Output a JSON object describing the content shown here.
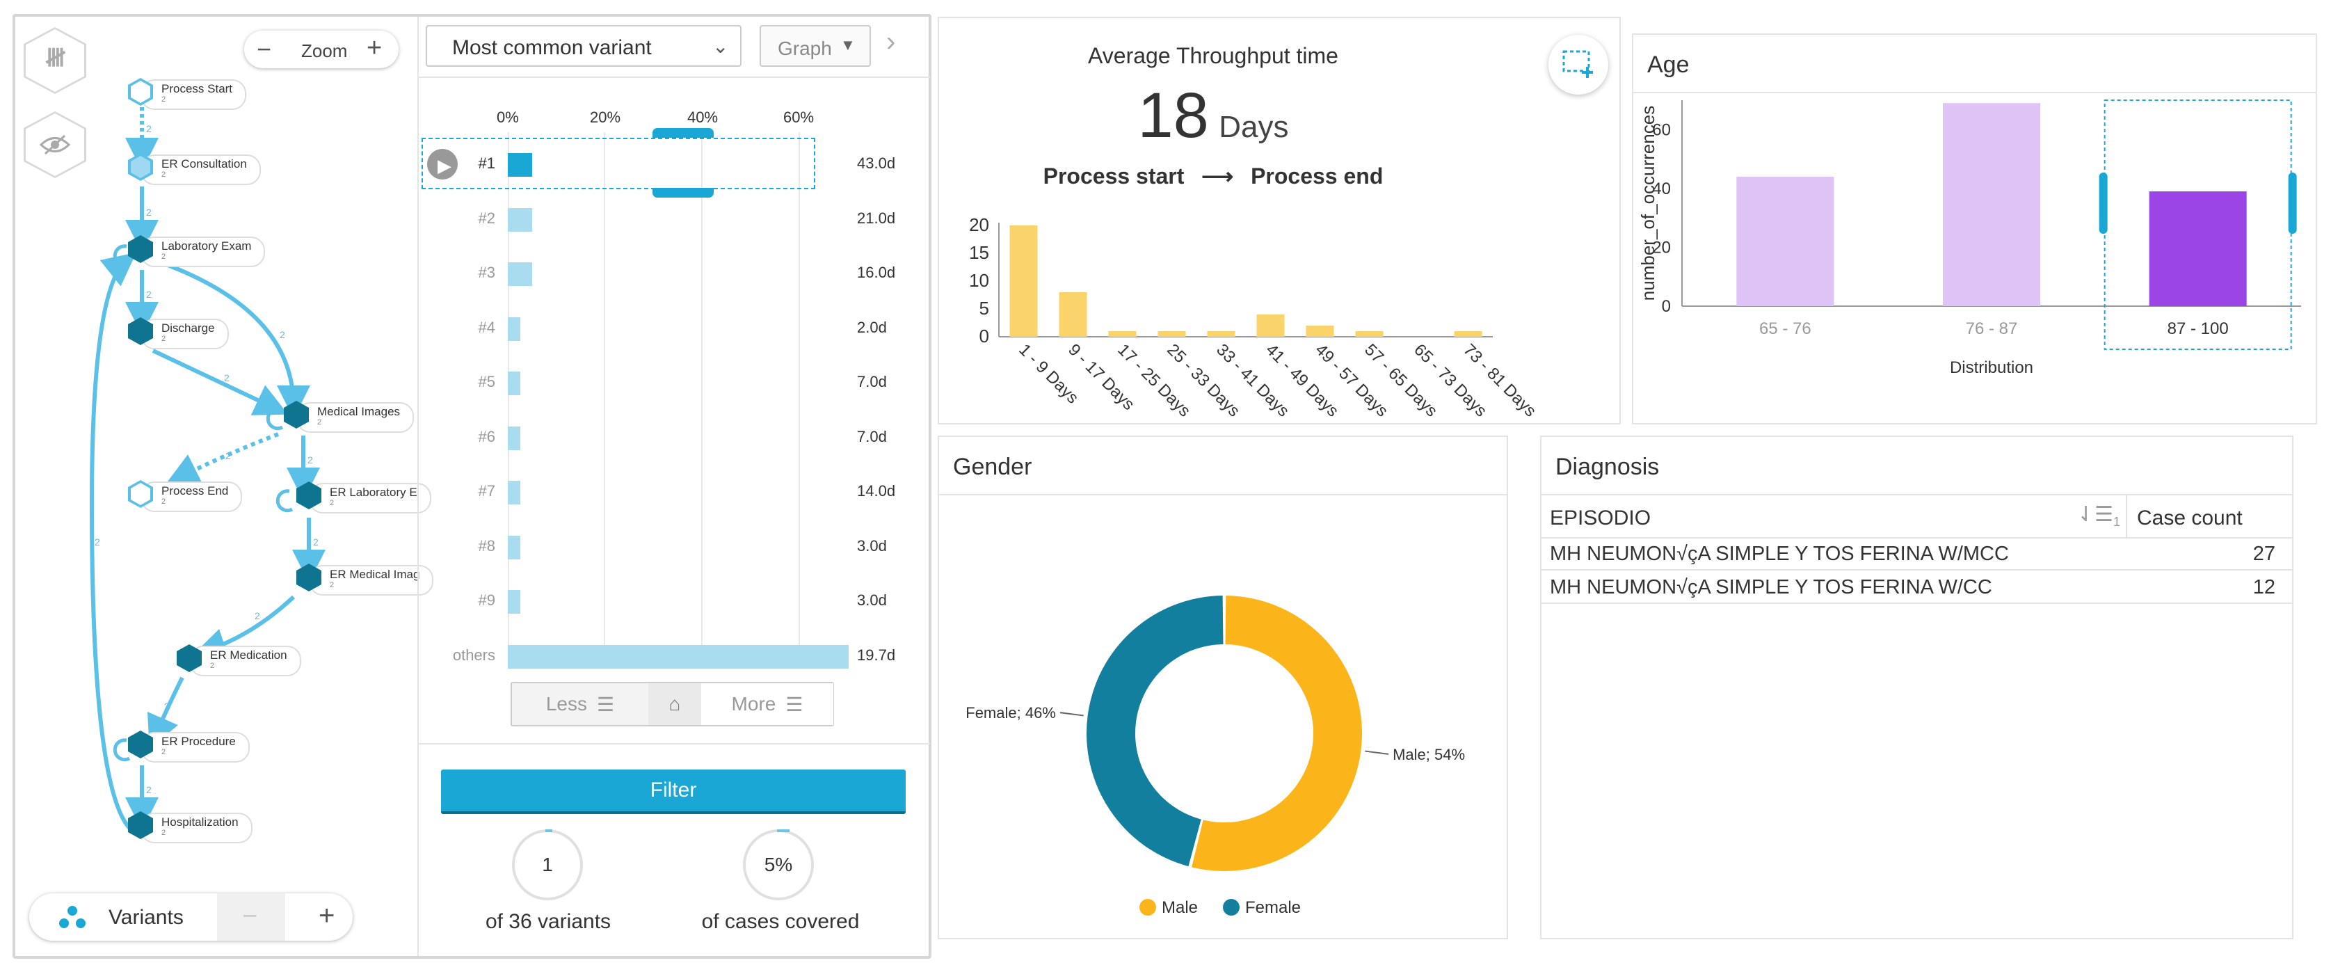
{
  "colors": {
    "accent": "#1aa7d6",
    "flow": "#5bc0e8",
    "node": "#0e7490",
    "bar_yellow": "#fbd36b",
    "age_light": "#dfc2f6",
    "age_dark": "#9b45e6",
    "male": "#fbb51b",
    "female": "#137f9f",
    "filter_btn": "#1aa7d6"
  },
  "process_map": {
    "zoom_label": "Zoom",
    "zoom_minus": "−",
    "zoom_plus": "+",
    "nodes": [
      {
        "label": "Process Start",
        "count": "2"
      },
      {
        "label": "ER Consultation",
        "count": "2"
      },
      {
        "label": "Laboratory Exam",
        "count": "2"
      },
      {
        "label": "Discharge",
        "count": "2"
      },
      {
        "label": "Medical Images",
        "count": "2"
      },
      {
        "label": "Process End",
        "count": "2"
      },
      {
        "label": "ER Laboratory E",
        "count": "2"
      },
      {
        "label": "ER Medical Imag",
        "count": "2"
      },
      {
        "label": "ER Medication",
        "count": "2"
      },
      {
        "label": "ER Procedure",
        "count": "2"
      },
      {
        "label": "Hospitalization",
        "count": "2"
      }
    ],
    "edge_labels": [
      "2",
      "2",
      "2",
      "2",
      "2",
      "2",
      "2",
      "2",
      "2",
      "2",
      "2",
      "2",
      "2"
    ],
    "variants_label": "Variants",
    "variants_minus": "−",
    "variants_plus": "+"
  },
  "variant_panel": {
    "dropdown_value": "Most common variant",
    "view_select": "Graph",
    "axis_ticks": [
      "0%",
      "20%",
      "40%",
      "60%"
    ],
    "rows": [
      {
        "label": "#1",
        "value": "43.0d",
        "pct": 5
      },
      {
        "label": "#2",
        "value": "21.0d",
        "pct": 5
      },
      {
        "label": "#3",
        "value": "16.0d",
        "pct": 5
      },
      {
        "label": "#4",
        "value": "2.0d",
        "pct": 2.5
      },
      {
        "label": "#5",
        "value": "7.0d",
        "pct": 2.5
      },
      {
        "label": "#6",
        "value": "7.0d",
        "pct": 2.5
      },
      {
        "label": "#7",
        "value": "14.0d",
        "pct": 2.5
      },
      {
        "label": "#8",
        "value": "3.0d",
        "pct": 2.5
      },
      {
        "label": "#9",
        "value": "3.0d",
        "pct": 2.5
      },
      {
        "label": "others",
        "value": "19.7d",
        "pct": 70
      }
    ],
    "less_label": "Less",
    "more_label": "More",
    "filter_label": "Filter",
    "variants_count": "1",
    "variants_caption": "of 36 variants",
    "cases_pct": "5%",
    "cases_caption": "of cases covered"
  },
  "throughput": {
    "title": "Average Throughput time",
    "value": "18",
    "unit": "Days",
    "from": "Process start",
    "arrow": "⟶",
    "to": "Process end",
    "chart_data": {
      "type": "bar",
      "categories": [
        "1 - 9 Days",
        "9 - 17 Days",
        "17 - 25 Days",
        "25 - 33 Days",
        "33 - 41 Days",
        "41 - 49 Days",
        "49 - 57 Days",
        "57 - 65 Days",
        "65 - 73 Days",
        "73 - 81 Days"
      ],
      "values": [
        20,
        8,
        1,
        1,
        1,
        4,
        2,
        1,
        0,
        1
      ],
      "yticks": [
        "0",
        "5",
        "10",
        "15",
        "20"
      ],
      "ylim": [
        0,
        20
      ]
    }
  },
  "age": {
    "title": "Age",
    "chart_data": {
      "type": "bar",
      "categories": [
        "65 - 76",
        "76 - 87",
        "87 - 100"
      ],
      "values": [
        44,
        69,
        39
      ],
      "yticks": [
        "0",
        "20",
        "40",
        "60"
      ],
      "ylim": [
        0,
        70
      ],
      "xlabel": "Distribution",
      "ylabel": "number_of_occurrences",
      "selected": "87 - 100"
    }
  },
  "gender": {
    "title": "Gender",
    "chart_data": {
      "type": "pie",
      "slices": [
        {
          "name": "Male",
          "value": 54,
          "label": "Male; 54%"
        },
        {
          "name": "Female",
          "value": 46,
          "label": "Female; 46%"
        }
      ],
      "legend": [
        "Male",
        "Female"
      ]
    }
  },
  "diagnosis": {
    "title": "Diagnosis",
    "columns": [
      "EPISODIO",
      "Case count"
    ],
    "sort_badge": "1",
    "rows": [
      {
        "name": "MH NEUMON√çA SIMPLE Y TOS FERINA W/MCC",
        "count": "27"
      },
      {
        "name": "MH NEUMON√çA SIMPLE Y TOS FERINA W/CC",
        "count": "12"
      }
    ]
  }
}
